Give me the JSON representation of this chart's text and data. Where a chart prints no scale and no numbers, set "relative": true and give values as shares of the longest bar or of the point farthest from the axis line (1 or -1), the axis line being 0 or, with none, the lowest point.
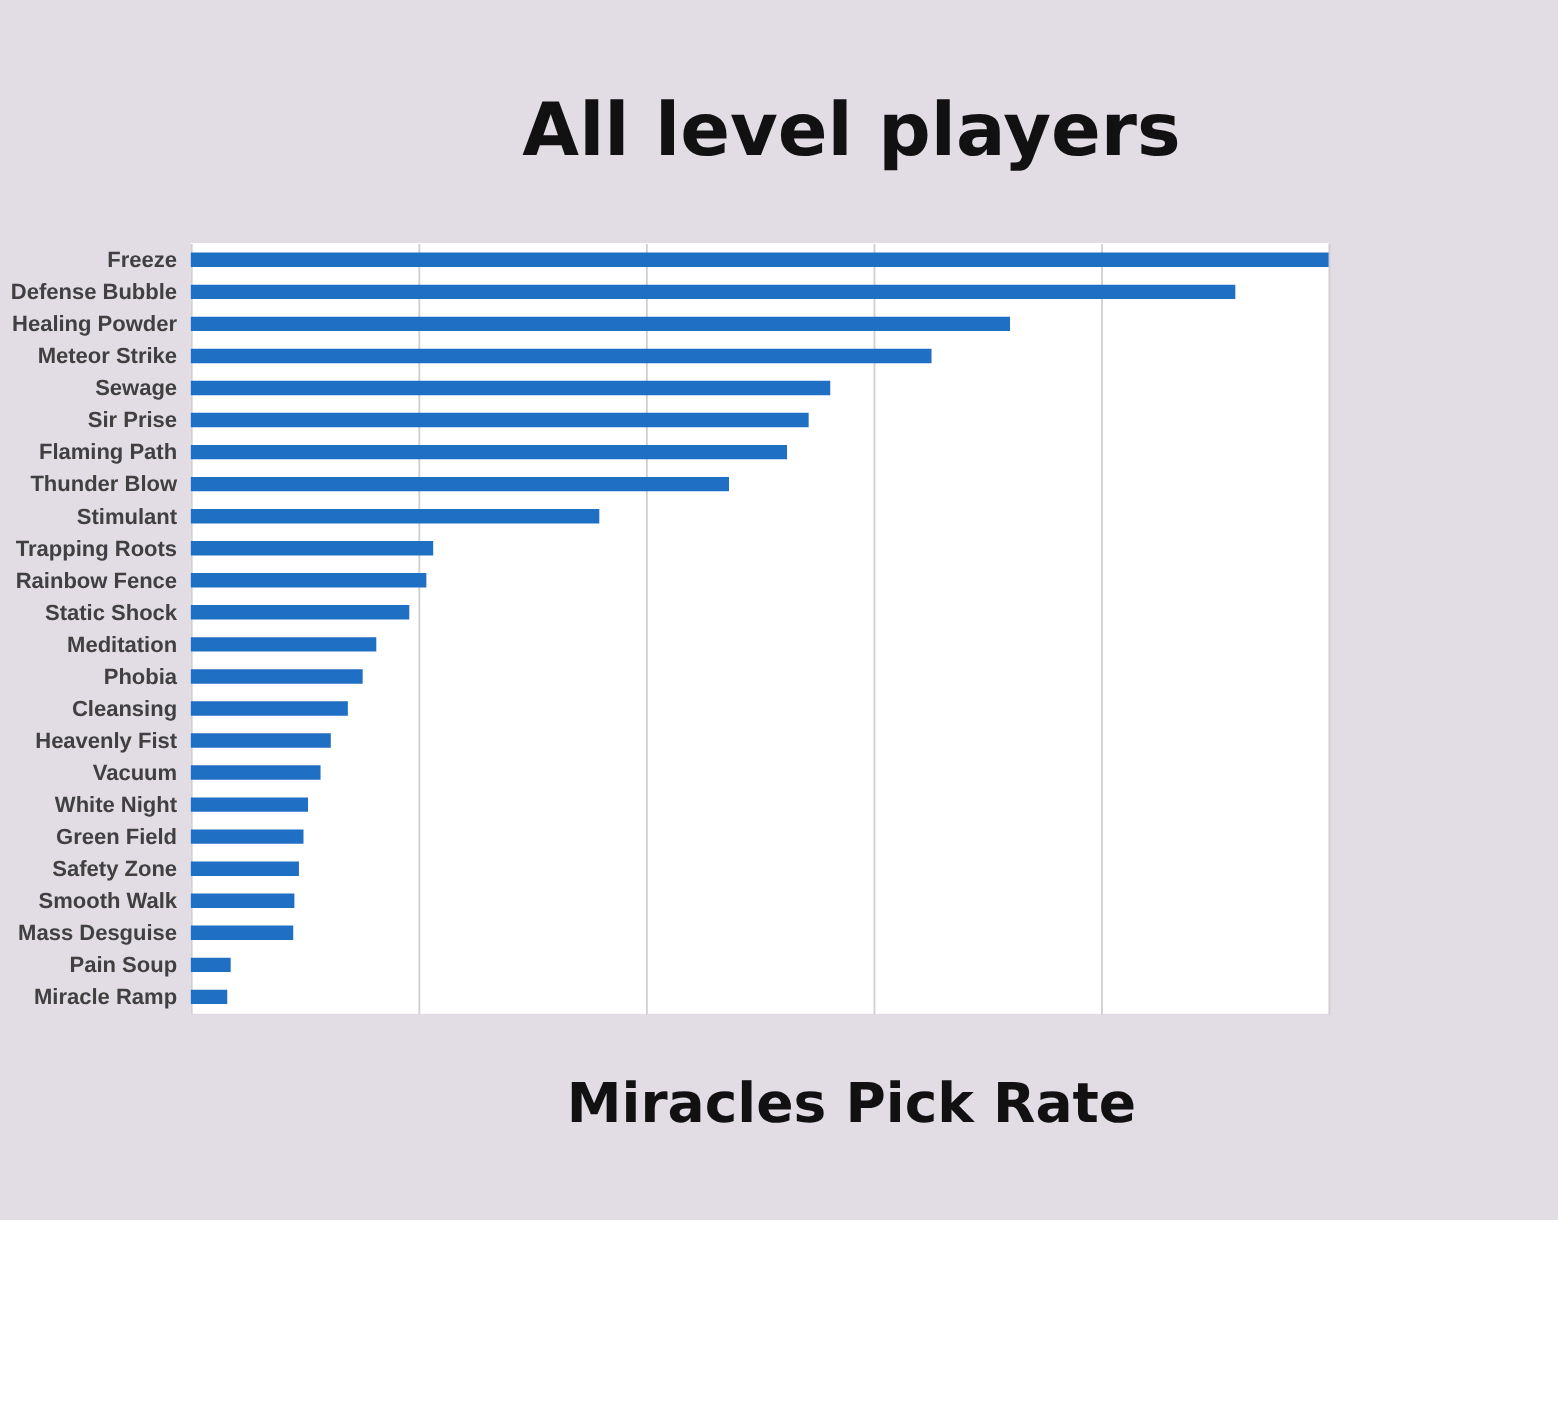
{
  "chart_data": {
    "type": "bar",
    "orientation": "horizontal",
    "relative": true,
    "title": "All level players",
    "categories": [
      "Freeze",
      "Defense Bubble",
      "Healing Powder",
      "Meteor Strike",
      "Sewage",
      "Sir Prise",
      "Flaming Path",
      "Thunder Blow",
      "Stimulant",
      "Trapping Roots",
      "Rainbow Fence",
      "Static Shock",
      "Meditation",
      "Phobia",
      "Cleansing",
      "Heavenly Fist",
      "Vacuum",
      "White Night",
      "Green Field",
      "Safety Zone",
      "Smooth Walk",
      "Mass Desguise",
      "Pain Soup",
      "Miracle Ramp"
    ],
    "values": [
      1,
      0.918,
      0.72,
      0.651,
      0.562,
      0.543,
      0.524,
      0.473,
      0.359,
      0.213,
      0.207,
      0.192,
      0.163,
      0.151,
      0.138,
      0.123,
      0.114,
      0.103,
      0.099,
      0.095,
      0.091,
      0.09,
      0.035,
      0.032
    ],
    "color": "#1f6fc5",
    "grid": "x",
    "annotations": [
      "Miracles Pick Rate"
    ]
  }
}
